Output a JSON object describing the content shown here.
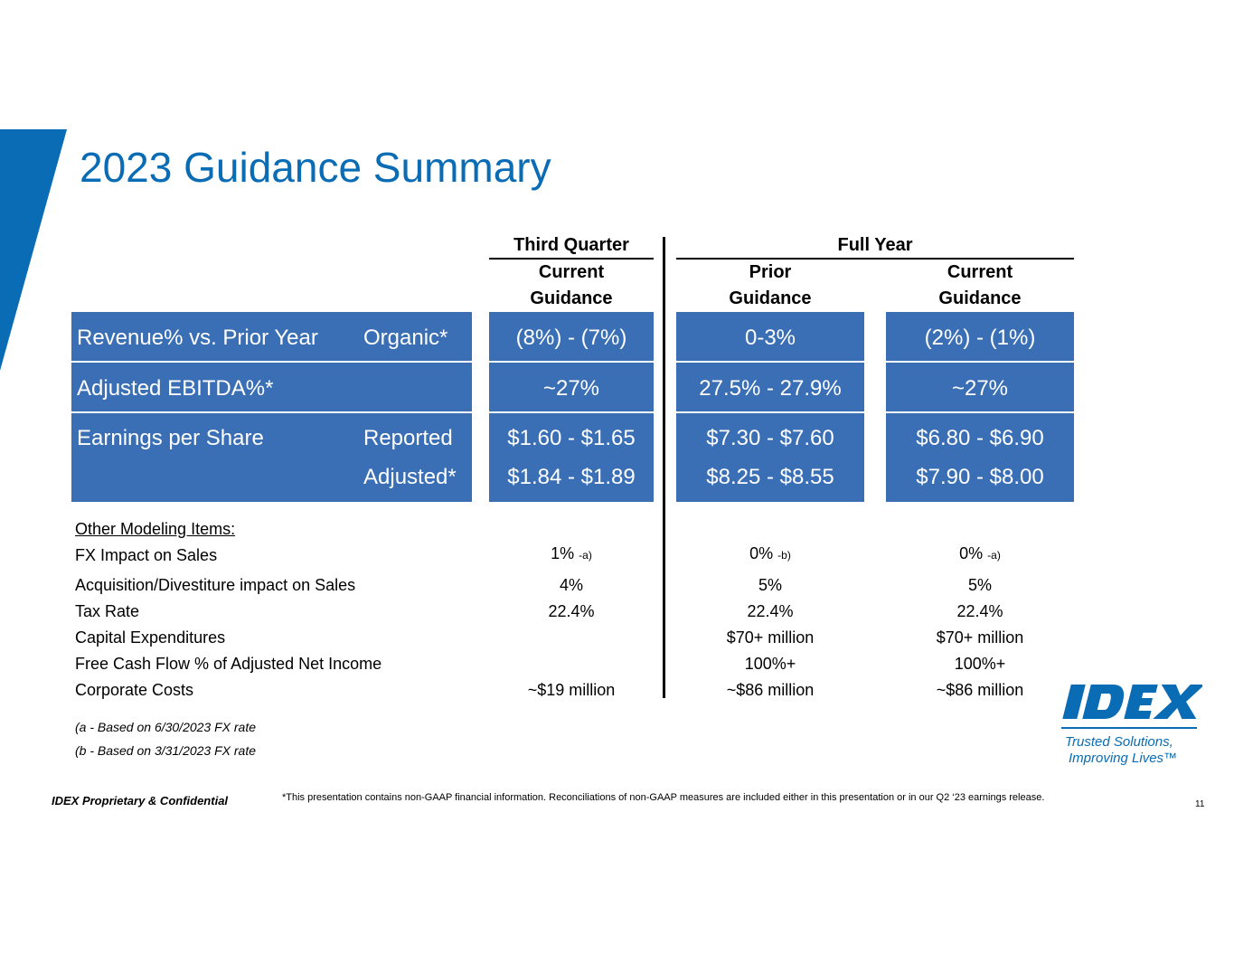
{
  "brand_color": "#0A6CB4",
  "band_color": "#3A6FB6",
  "title": "2023 Guidance Summary",
  "headers": {
    "third_quarter": "Third Quarter",
    "full_year": "Full Year",
    "col1_line1": "Current",
    "col1_line2": "Guidance",
    "col2_line1": "Prior",
    "col2_line2": "Guidance",
    "col3_line1": "Current",
    "col3_line2": "Guidance"
  },
  "rows": [
    {
      "label": "Revenue% vs. Prior Year",
      "sublabel": "Organic*",
      "q3_current": "(8%) - (7%)",
      "fy_prior": "0-3%",
      "fy_current": "(2%) - (1%)"
    },
    {
      "label": "Adjusted EBITDA%*",
      "sublabel": "",
      "q3_current": "~27%",
      "fy_prior": "27.5% - 27.9%",
      "fy_current": "~27%"
    },
    {
      "label": "Earnings per Share",
      "sublabel": "Reported",
      "q3_current": "$1.60 - $1.65",
      "fy_prior": "$7.30 - $7.60",
      "fy_current": "$6.80 - $6.90"
    },
    {
      "label": "",
      "sublabel": "Adjusted*",
      "q3_current": "$1.84 - $1.89",
      "fy_prior": "$8.25 - $8.55",
      "fy_current": "$7.90 - $8.00"
    }
  ],
  "other": {
    "heading": "Other Modeling Items:",
    "items": [
      {
        "label": "FX Impact on Sales",
        "q3_current": "1%",
        "q3_note": "-a)",
        "fy_prior": "0%",
        "fy_prior_note": "-b)",
        "fy_current": "0%",
        "fy_current_note": "-a)"
      },
      {
        "label": "Acquisition/Divestiture impact on Sales",
        "q3_current": "4%",
        "fy_prior": "5%",
        "fy_current": "5%"
      },
      {
        "label": "Tax Rate",
        "q3_current": "22.4%",
        "fy_prior": "22.4%",
        "fy_current": "22.4%"
      },
      {
        "label": "Capital Expenditures",
        "q3_current": "",
        "fy_prior": "$70+ million",
        "fy_current": "$70+ million"
      },
      {
        "label": "Free Cash Flow % of Adjusted Net Income",
        "q3_current": "",
        "fy_prior": "100%+",
        "fy_current": "100%+"
      },
      {
        "label": "Corporate Costs",
        "q3_current": "~$19 million",
        "fy_prior": "~$86 million",
        "fy_current": "~$86 million"
      }
    ]
  },
  "notes": [
    "(a - Based on 6/30/2023 FX rate",
    "(b - Based on 3/31/2023 FX rate"
  ],
  "footer": {
    "confidential": "IDEX Proprietary & Confidential",
    "disclaimer": "*This presentation contains non-GAAP financial information. Reconciliations of non-GAAP measures are included either in this presentation or in our Q2 ‘23 earnings release.",
    "page": "11"
  },
  "logo": {
    "wordmark": "IDEX",
    "tagline_1": "Trusted Solutions,",
    "tagline_2": "Improving Lives™"
  }
}
